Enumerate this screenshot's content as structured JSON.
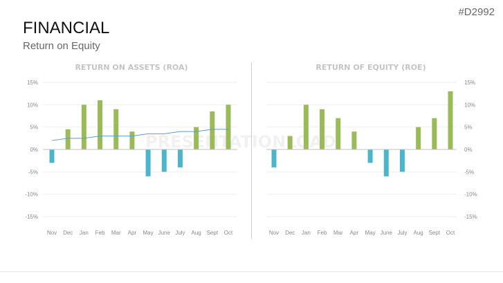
{
  "slide": {
    "code": "#D2992",
    "title": "FINANCIAL",
    "subtitle": "Return on Equity",
    "watermark": "PRESENTATIONLOAD"
  },
  "colors": {
    "positive": "#9bbb59",
    "negative": "#4bb5cc",
    "line": "#5b9bd5",
    "grid": "#eeeeee",
    "axis": "#bfbfbf"
  },
  "chart_data": [
    {
      "type": "bar",
      "title": "RETURN ON ASSETS (ROA)",
      "categories": [
        "Nov",
        "Dec",
        "Jan",
        "Feb",
        "Mar",
        "Apr",
        "May",
        "June",
        "July",
        "Aug",
        "Sept",
        "Oct"
      ],
      "values": [
        -3,
        4.5,
        10,
        11,
        9,
        4,
        -6,
        -5,
        -4,
        5,
        8.5,
        10
      ],
      "line_values": [
        2,
        2.5,
        2.5,
        3,
        3,
        3,
        3.5,
        3.5,
        4,
        4,
        4.5,
        4.5
      ],
      "ylim": [
        -15,
        15
      ],
      "yticks": [
        "15%",
        "10%",
        "5%",
        "0%",
        "-5%",
        "-10%",
        "-15%"
      ],
      "yaxis_side": "left",
      "grid": true
    },
    {
      "type": "bar",
      "title": "RETURN OF EQUITY (ROE)",
      "categories": [
        "Nov",
        "Dec",
        "Jan",
        "Feb",
        "Mar",
        "Apr",
        "May",
        "June",
        "July",
        "Aug",
        "Sept",
        "Oct"
      ],
      "values": [
        -4,
        3,
        10,
        9,
        7,
        4,
        -3,
        -6,
        -5,
        5,
        7,
        13
      ],
      "ylim": [
        -15,
        15
      ],
      "yticks": [
        "15%",
        "10%",
        "5%",
        "0%",
        "-5%",
        "-10%",
        "-15%"
      ],
      "yaxis_side": "right",
      "grid": true
    }
  ]
}
